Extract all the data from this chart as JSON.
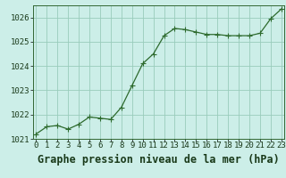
{
  "x": [
    0,
    1,
    2,
    3,
    4,
    5,
    6,
    7,
    8,
    9,
    10,
    11,
    12,
    13,
    14,
    15,
    16,
    17,
    18,
    19,
    20,
    21,
    22,
    23
  ],
  "y": [
    1021.2,
    1021.5,
    1021.55,
    1021.4,
    1021.6,
    1021.9,
    1021.85,
    1021.8,
    1022.3,
    1023.2,
    1024.1,
    1024.5,
    1025.25,
    1025.55,
    1025.5,
    1025.4,
    1025.3,
    1025.3,
    1025.25,
    1025.25,
    1025.25,
    1025.35,
    1025.95,
    1026.35
  ],
  "bg_color": "#cceee8",
  "grid_color": "#99ccbb",
  "line_color": "#2d6a2d",
  "marker_color": "#2d6a2d",
  "xlabel": "Graphe pression niveau de la mer (hPa)",
  "xlabel_fontsize": 8.5,
  "ylim": [
    1021.0,
    1026.5
  ],
  "yticks": [
    1021,
    1022,
    1023,
    1024,
    1025,
    1026
  ],
  "xticks": [
    0,
    1,
    2,
    3,
    4,
    5,
    6,
    7,
    8,
    9,
    10,
    11,
    12,
    13,
    14,
    15,
    16,
    17,
    18,
    19,
    20,
    21,
    22,
    23
  ],
  "tick_fontsize": 6.5,
  "marker_size": 2.5,
  "line_width": 0.9
}
